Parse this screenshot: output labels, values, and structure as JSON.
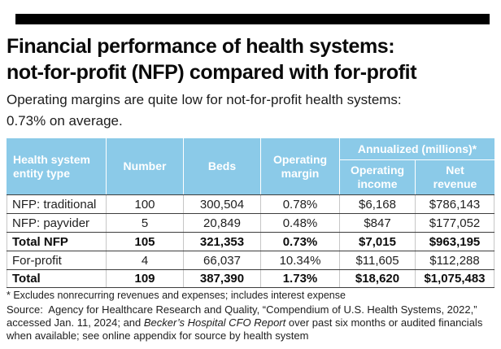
{
  "page": {
    "title": "Financial performance of health systems:\nnot-for-profit (NFP) compared with for-profit",
    "subtitle": "Operating margins are quite low for not-for-profit health systems:\n0.73% on average."
  },
  "table": {
    "headers": {
      "entity": "Health system\nentity type",
      "number": "Number",
      "beds": "Beds",
      "margin": "Operating\nmargin",
      "annualized": "Annualized (millions)*",
      "income": "Operating\nincome",
      "revenue": "Net\nrevenue"
    },
    "rows": [
      {
        "entity": "NFP: traditional",
        "number": "100",
        "beds": "300,504",
        "margin": "0.78%",
        "income": "$6,168",
        "revenue": "$786,143"
      },
      {
        "entity": "NFP: payvider",
        "number": "5",
        "beds": "20,849",
        "margin": "0.48%",
        "income": "$847",
        "revenue": "$177,052"
      },
      {
        "entity": "Total NFP",
        "number": "105",
        "beds": "321,353",
        "margin": "0.73%",
        "income": "$7,015",
        "revenue": "$963,195"
      },
      {
        "entity": "For-profit",
        "number": "4",
        "beds": "66,037",
        "margin": "10.34%",
        "income": "$11,605",
        "revenue": "$112,288"
      },
      {
        "entity": "Total",
        "number": "109",
        "beds": "387,390",
        "margin": "1.73%",
        "income": "$18,620",
        "revenue": "$1,075,483"
      }
    ]
  },
  "notes": {
    "footnote": "* Excludes nonrecurring revenues and expenses; includes interest expense",
    "source_prefix": "Source:  Agency for Healthcare Research and Quality, “Compendium of U.S. Health Systems, 2022,” accessed Jan. 11, 2024; and ",
    "source_italic": "Becker’s Hospital CFO Report",
    "source_suffix": " over past six months or audited financials when available; see online appendix for source by health system"
  },
  "colors": {
    "top_bar": "#000000",
    "header_bg": "#8BCAE8",
    "header_text": "#FFFFFF",
    "row_border": "#3D3D3D",
    "column_border": "#C6C6C6"
  },
  "chart_data": {
    "type": "table",
    "title": "Financial performance of health systems: not-for-profit (NFP) compared with for-profit",
    "subtitle": "Operating margins are quite low for not-for-profit health systems: 0.73% on average.",
    "columns": [
      "Health system entity type",
      "Number",
      "Beds",
      "Operating margin",
      "Annualized operating income (millions)",
      "Annualized net revenue (millions)"
    ],
    "rows": [
      [
        "NFP: traditional",
        100,
        "300,504",
        "0.78%",
        "$6,168",
        "$786,143"
      ],
      [
        "NFP: payvider",
        5,
        "20,849",
        "0.48%",
        "$847",
        "$177,052"
      ],
      [
        "Total NFP",
        105,
        "321,353",
        "0.73%",
        "$7,015",
        "$963,195"
      ],
      [
        "For-profit",
        4,
        "66,037",
        "10.34%",
        "$11,605",
        "$112,288"
      ],
      [
        "Total",
        109,
        "387,390",
        "1.73%",
        "$18,620",
        "$1,075,483"
      ]
    ],
    "footnote": "* Excludes nonrecurring revenues and expenses; includes interest expense",
    "source": "Source: Agency for Healthcare Research and Quality, “Compendium of U.S. Health Systems, 2022,” accessed Jan. 11, 2024; and Becker’s Hospital CFO Report over past six months or audited financials when available; see online appendix for source by health system"
  }
}
